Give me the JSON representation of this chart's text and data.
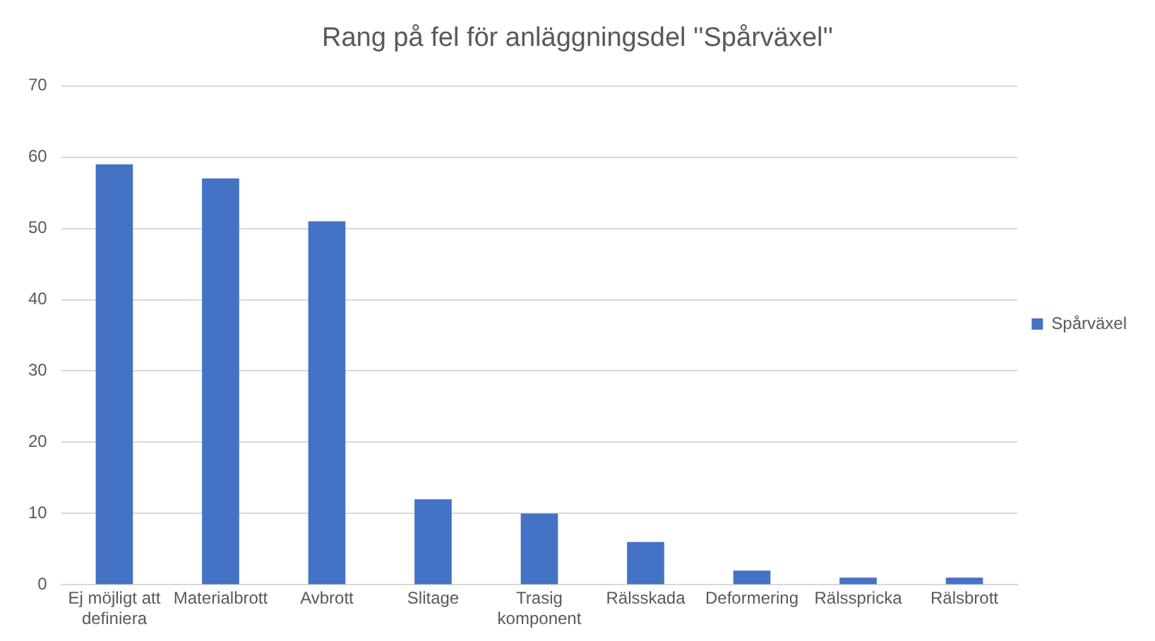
{
  "chart_data": {
    "type": "bar",
    "title": "Rang på fel för anläggningsdel ''Spårväxel''",
    "categories": [
      "Ej möjligt att definiera",
      "Materialbrott",
      "Avbrott",
      "Slitage",
      "Trasig komponent",
      "Rälsskada",
      "Deformering",
      "Rälsspricka",
      "Rälsbrott"
    ],
    "series": [
      {
        "name": "Spårväxel",
        "color": "#4472c4",
        "values": [
          59,
          57,
          51,
          12,
          10,
          6,
          2,
          1,
          1
        ]
      }
    ],
    "ylim": [
      0,
      70
    ],
    "yticks": [
      0,
      10,
      20,
      30,
      40,
      50,
      60,
      70
    ],
    "grid": "y",
    "legend": "right"
  }
}
